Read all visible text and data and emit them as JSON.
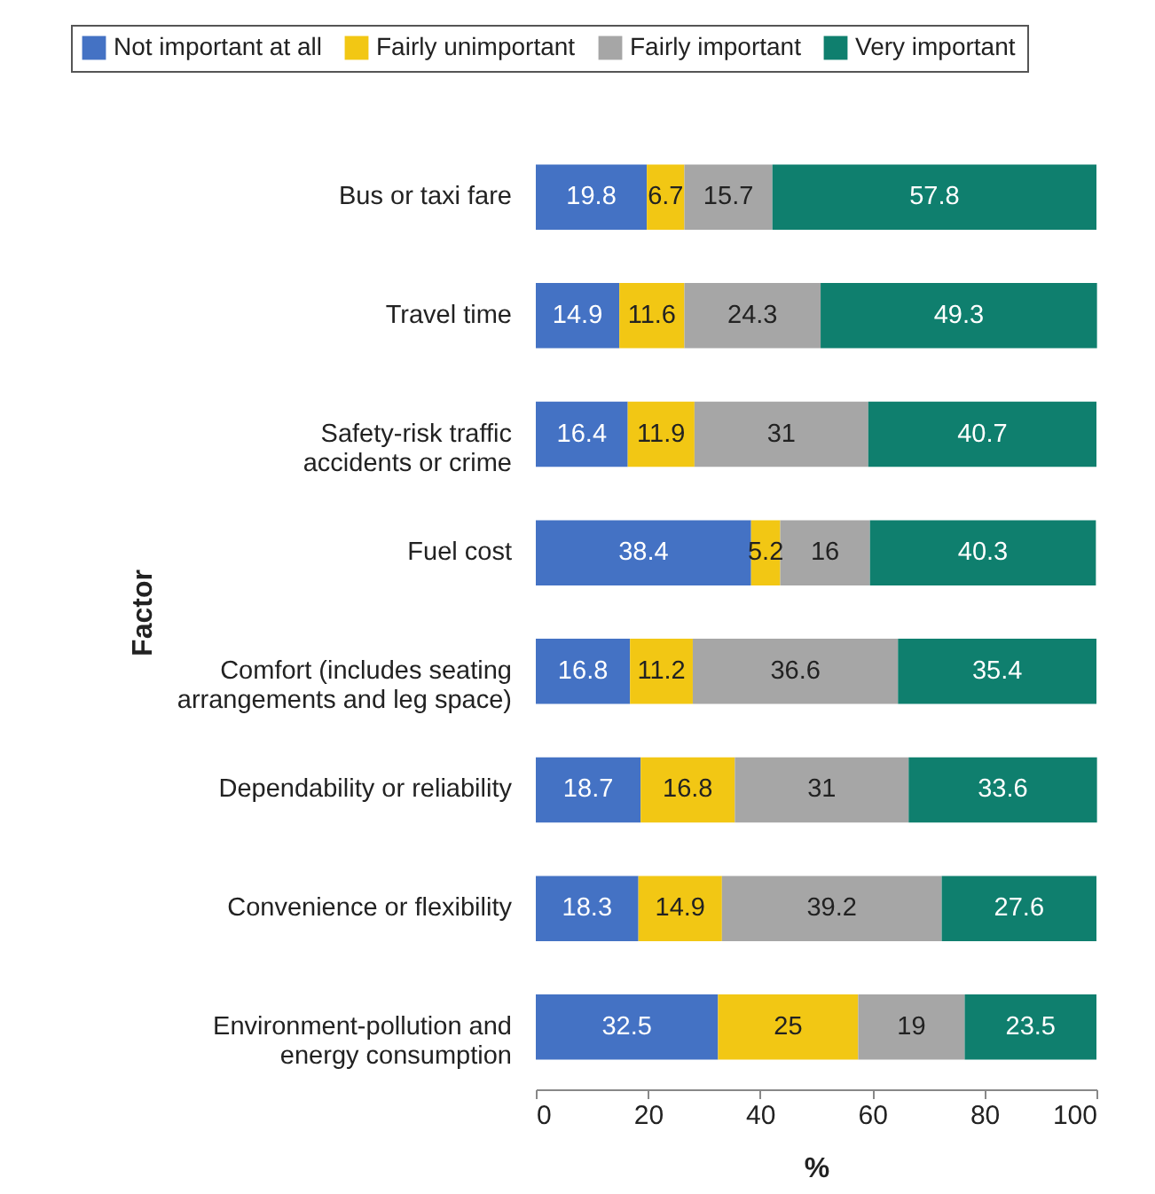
{
  "chart_data": {
    "type": "bar",
    "orientation": "horizontal",
    "stacked": true,
    "xlabel": "%",
    "ylabel": "Factor",
    "categories": [
      "Bus or taxi fare",
      "Travel time",
      "Safety-risk traffic\naccidents or crime",
      "Fuel cost",
      "Comfort (includes seating\narrangements and leg space)",
      "Dependability or reliability",
      "Convenience or flexibility",
      "Environment-pollution and\nenergy consumption"
    ],
    "series": [
      {
        "name": "Not important at all",
        "color": "#4472c4",
        "values": [
          19.8,
          14.9,
          16.4,
          38.4,
          16.8,
          18.7,
          18.3,
          32.5
        ]
      },
      {
        "name": "Fairly unimportant",
        "color": "#f2c714",
        "values": [
          6.7,
          11.6,
          11.9,
          5.2,
          11.2,
          16.8,
          14.9,
          25
        ]
      },
      {
        "name": "Fairly important",
        "color": "#a6a6a6",
        "values": [
          15.7,
          24.3,
          31,
          16,
          36.6,
          31,
          39.2,
          19
        ]
      },
      {
        "name": "Very important",
        "color": "#0f7f6e",
        "values": [
          57.8,
          49.3,
          40.7,
          40.3,
          35.4,
          33.6,
          27.6,
          23.5
        ]
      }
    ],
    "xlim": [
      0,
      100
    ],
    "xticks": [
      0,
      20,
      40,
      60,
      80,
      100
    ],
    "data_labels": true,
    "legend": "top",
    "grid": false
  }
}
